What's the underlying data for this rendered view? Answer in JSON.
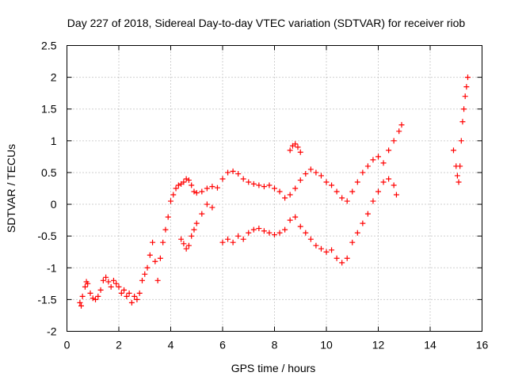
{
  "chart_data": {
    "type": "scatter",
    "title": "Day 227 of 2018, Sidereal Day-to-day VTEC variation (SDTVAR) for receiver riob",
    "xlabel": "GPS time / hours",
    "ylabel": "SDTVAR / TECUs",
    "xlim": [
      0,
      16
    ],
    "ylim": [
      -2,
      2.5
    ],
    "xticks": [
      0,
      2,
      4,
      6,
      8,
      10,
      12,
      14,
      16
    ],
    "yticks": [
      -2,
      -1.5,
      -1,
      -0.5,
      0,
      0.5,
      1,
      1.5,
      2,
      2.5
    ],
    "xtick_labels": [
      "0",
      "2",
      "4",
      "6",
      "8",
      "10",
      "12",
      "14",
      "16"
    ],
    "ytick_labels": [
      "-2",
      "-1.5",
      "-1",
      "-0.5",
      "0",
      "0.5",
      "1",
      "1.5",
      "2",
      "2.5"
    ],
    "grid": true,
    "marker": "+",
    "color": "#ff0000",
    "series": [
      {
        "x": [
          0.5,
          0.55,
          0.6,
          0.7,
          0.75,
          0.8,
          0.9,
          1.0,
          1.1,
          1.2,
          1.3,
          1.4,
          1.5,
          1.6,
          1.7,
          1.8,
          1.9,
          2.0,
          2.1,
          2.2,
          2.3,
          2.4,
          2.5,
          2.6,
          2.7,
          2.8,
          2.9,
          3.0,
          3.1,
          3.2,
          3.3,
          3.4,
          3.5,
          3.6,
          3.7,
          3.8,
          3.9,
          4.0,
          4.1,
          4.2,
          4.3,
          4.4,
          4.5,
          4.6,
          4.7,
          4.8,
          4.9,
          5.0,
          5.2,
          5.4,
          5.6,
          5.8,
          6.0,
          6.2,
          6.4,
          6.6,
          6.8,
          7.0,
          7.2,
          7.4,
          7.6,
          7.8,
          8.0,
          8.2,
          8.4,
          8.6,
          8.8,
          9.0,
          9.2,
          9.4,
          9.6,
          9.8,
          10.0,
          10.2,
          10.4,
          10.6,
          10.8,
          11.0,
          11.2,
          11.4,
          11.6,
          11.8,
          12.0,
          12.2,
          12.4,
          12.6,
          12.8,
          12.9
        ],
        "y": [
          -1.55,
          -1.6,
          -1.45,
          -1.3,
          -1.22,
          -1.25,
          -1.4,
          -1.48,
          -1.5,
          -1.45,
          -1.35,
          -1.2,
          -1.15,
          -1.22,
          -1.3,
          -1.2,
          -1.25,
          -1.3,
          -1.4,
          -1.35,
          -1.45,
          -1.4,
          -1.55,
          -1.45,
          -1.5,
          -1.4,
          -1.2,
          -1.1,
          -1.0,
          -0.8,
          -0.6,
          -0.9,
          -1.2,
          -0.85,
          -0.6,
          -0.4,
          -0.2,
          0.05,
          0.15,
          0.25,
          0.3,
          0.32,
          0.35,
          0.4,
          0.38,
          0.3,
          0.2,
          0.18,
          0.2,
          0.25,
          0.28,
          0.26,
          0.4,
          0.5,
          0.52,
          0.48,
          0.4,
          0.35,
          0.32,
          0.3,
          0.28,
          0.3,
          0.25,
          0.2,
          0.1,
          0.15,
          0.25,
          0.38,
          0.48,
          0.55,
          0.5,
          0.45,
          0.35,
          0.3,
          0.2,
          0.1,
          0.05,
          0.2,
          0.35,
          0.5,
          0.6,
          0.7,
          0.75,
          0.65,
          0.85,
          1.0,
          1.15,
          1.25
        ]
      },
      {
        "x": [
          4.4,
          4.5,
          4.6,
          4.7,
          4.8,
          4.9,
          5.0,
          5.2,
          5.4,
          5.6
        ],
        "y": [
          -0.55,
          -0.62,
          -0.7,
          -0.65,
          -0.5,
          -0.4,
          -0.3,
          -0.15,
          0.0,
          -0.05
        ]
      },
      {
        "x": [
          8.6,
          8.7,
          8.8,
          8.9,
          9.0
        ],
        "y": [
          0.85,
          0.92,
          0.95,
          0.9,
          0.82
        ]
      },
      {
        "x": [
          6.0,
          6.2,
          6.4,
          6.6,
          6.8,
          7.0,
          7.2,
          7.4,
          7.6,
          7.8,
          8.0,
          8.2,
          8.4,
          8.6,
          8.8,
          9.0,
          9.2,
          9.4,
          9.6,
          9.8,
          10.0,
          10.2,
          10.4,
          10.6,
          10.8,
          11.0,
          11.2,
          11.4,
          11.6,
          11.8,
          12.0,
          12.2,
          12.4,
          12.6,
          12.7
        ],
        "y": [
          -0.6,
          -0.55,
          -0.6,
          -0.5,
          -0.55,
          -0.45,
          -0.4,
          -0.38,
          -0.42,
          -0.45,
          -0.48,
          -0.45,
          -0.4,
          -0.25,
          -0.2,
          -0.35,
          -0.45,
          -0.55,
          -0.65,
          -0.7,
          -0.75,
          -0.72,
          -0.85,
          -0.92,
          -0.85,
          -0.6,
          -0.45,
          -0.3,
          -0.15,
          0.05,
          0.2,
          0.35,
          0.4,
          0.3,
          0.15
        ]
      },
      {
        "x": [
          14.9,
          15.0,
          15.05,
          15.1,
          15.15,
          15.2,
          15.25,
          15.3,
          15.35,
          15.4,
          15.45
        ],
        "y": [
          0.85,
          0.6,
          0.45,
          0.35,
          0.6,
          1.0,
          1.3,
          1.5,
          1.7,
          1.85,
          2.0
        ]
      }
    ]
  }
}
